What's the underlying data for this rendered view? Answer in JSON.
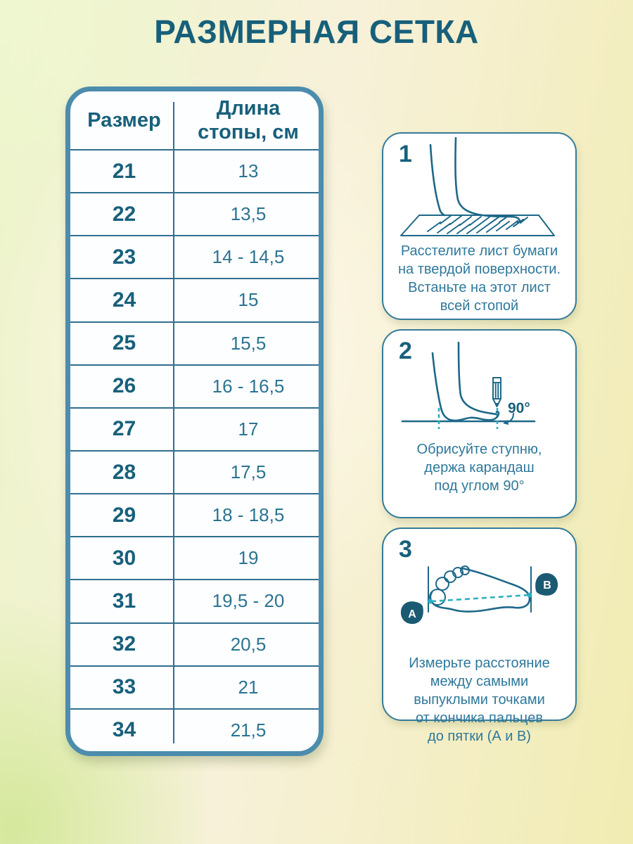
{
  "title": "РАЗМЕРНАЯ СЕТКА",
  "table": {
    "header": {
      "size": "Размер",
      "length": "Длина\nстопы, см"
    },
    "rows": [
      {
        "size": "21",
        "length": "13"
      },
      {
        "size": "22",
        "length": "13,5"
      },
      {
        "size": "23",
        "length": "14 - 14,5"
      },
      {
        "size": "24",
        "length": "15"
      },
      {
        "size": "25",
        "length": "15,5"
      },
      {
        "size": "26",
        "length": "16 - 16,5"
      },
      {
        "size": "27",
        "length": "17"
      },
      {
        "size": "28",
        "length": "17,5"
      },
      {
        "size": "29",
        "length": "18 - 18,5"
      },
      {
        "size": "30",
        "length": "19"
      },
      {
        "size": "31",
        "length": "19,5 - 20"
      },
      {
        "size": "32",
        "length": "20,5"
      },
      {
        "size": "33",
        "length": "21"
      },
      {
        "size": "34",
        "length": "21,5"
      }
    ]
  },
  "steps": [
    {
      "number": "1",
      "icon": "foot-on-paper-icon",
      "text": "Расстелите лист бумаги\nна твердой поверхности.\nВстаньте на этот лист\nвсей стопой"
    },
    {
      "number": "2",
      "icon": "foot-pencil-trace-icon",
      "angle_label": "90°",
      "text": "Обрисуйте ступню,\nдержа карандаш\nпод углом 90°"
    },
    {
      "number": "3",
      "icon": "foot-measure-icon",
      "point_a": "А",
      "point_b": "В",
      "text": "Измерьте расстояние\nмежду самыми\nвыпуклыми точками\nот кончика пальцев\nдо пятки (А и В)"
    }
  ],
  "colors": {
    "title_text": "#17607b",
    "table_border": "#4c8cad",
    "grid_line": "#2f6f8f",
    "value_text": "#2b7492",
    "card_text": "#2e789b",
    "card_border": "#357b99",
    "illustration_stroke": "#1d6888",
    "cyan_dash": "#2cb0c0",
    "badge_fill": "#1b5a73",
    "background_yellow": "#f1ecb2",
    "background_green": "#d5e89c"
  }
}
